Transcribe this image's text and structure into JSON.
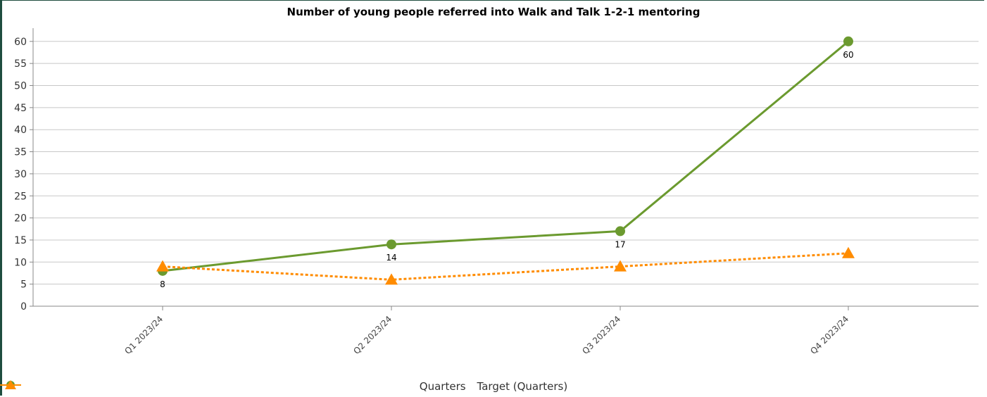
{
  "chart_data": {
    "type": "line",
    "title": "Number of young people referred into Walk and Talk 1-2-1 mentoring",
    "categories": [
      "Q1 2023/24",
      "Q2 2023/24",
      "Q3 2023/24",
      "Q4 2023/24"
    ],
    "series": [
      {
        "name": "Quarters",
        "values": [
          8,
          14,
          17,
          60
        ],
        "color": "#6b9a2f",
        "marker": "circle",
        "style": "solid",
        "labels": [
          "8",
          "14",
          "17",
          "60"
        ]
      },
      {
        "name": "Target (Quarters)",
        "values": [
          9,
          6,
          9,
          12
        ],
        "color": "#ff8c00",
        "marker": "triangle",
        "style": "dashed"
      }
    ],
    "yticks": [
      0,
      5,
      10,
      15,
      20,
      25,
      30,
      35,
      40,
      45,
      50,
      55,
      60
    ],
    "ylim": [
      0,
      63
    ],
    "grid": true,
    "legend_position": "bottom"
  }
}
